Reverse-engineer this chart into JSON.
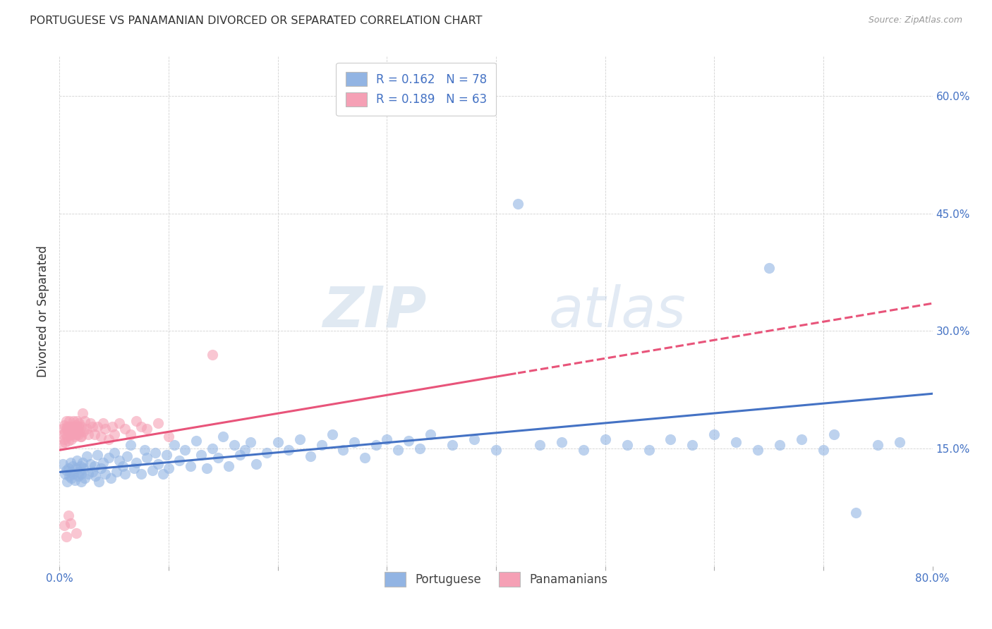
{
  "title": "PORTUGUESE VS PANAMANIAN DIVORCED OR SEPARATED CORRELATION CHART",
  "source": "Source: ZipAtlas.com",
  "ylabel": "Divorced or Separated",
  "x_min": 0.0,
  "x_max": 0.8,
  "y_min": 0.0,
  "y_max": 0.65,
  "x_ticks": [
    0.0,
    0.1,
    0.2,
    0.3,
    0.4,
    0.5,
    0.6,
    0.7,
    0.8
  ],
  "y_ticks": [
    0.0,
    0.15,
    0.3,
    0.45,
    0.6
  ],
  "watermark_zip": "ZIP",
  "watermark_atlas": "atlas",
  "portuguese_color": "#92b4e3",
  "panamanian_color": "#f5a0b5",
  "trend_portuguese_color": "#4472c4",
  "trend_panamanian_color": "#e8547a",
  "background_color": "#ffffff",
  "portuguese_scatter": [
    [
      0.003,
      0.13
    ],
    [
      0.005,
      0.118
    ],
    [
      0.006,
      0.122
    ],
    [
      0.007,
      0.108
    ],
    [
      0.008,
      0.125
    ],
    [
      0.009,
      0.115
    ],
    [
      0.01,
      0.132
    ],
    [
      0.01,
      0.12
    ],
    [
      0.011,
      0.112
    ],
    [
      0.012,
      0.128
    ],
    [
      0.013,
      0.118
    ],
    [
      0.014,
      0.11
    ],
    [
      0.015,
      0.125
    ],
    [
      0.016,
      0.135
    ],
    [
      0.017,
      0.115
    ],
    [
      0.018,
      0.12
    ],
    [
      0.019,
      0.128
    ],
    [
      0.02,
      0.108
    ],
    [
      0.02,
      0.118
    ],
    [
      0.021,
      0.132
    ],
    [
      0.022,
      0.125
    ],
    [
      0.023,
      0.112
    ],
    [
      0.025,
      0.14
    ],
    [
      0.026,
      0.118
    ],
    [
      0.028,
      0.13
    ],
    [
      0.03,
      0.12
    ],
    [
      0.032,
      0.128
    ],
    [
      0.033,
      0.115
    ],
    [
      0.035,
      0.142
    ],
    [
      0.036,
      0.108
    ],
    [
      0.038,
      0.125
    ],
    [
      0.04,
      0.132
    ],
    [
      0.042,
      0.118
    ],
    [
      0.045,
      0.138
    ],
    [
      0.047,
      0.112
    ],
    [
      0.05,
      0.145
    ],
    [
      0.052,
      0.12
    ],
    [
      0.055,
      0.135
    ],
    [
      0.058,
      0.128
    ],
    [
      0.06,
      0.118
    ],
    [
      0.062,
      0.14
    ],
    [
      0.065,
      0.155
    ],
    [
      0.068,
      0.125
    ],
    [
      0.07,
      0.132
    ],
    [
      0.075,
      0.118
    ],
    [
      0.078,
      0.148
    ],
    [
      0.08,
      0.138
    ],
    [
      0.085,
      0.122
    ],
    [
      0.088,
      0.145
    ],
    [
      0.09,
      0.13
    ],
    [
      0.095,
      0.118
    ],
    [
      0.098,
      0.142
    ],
    [
      0.1,
      0.125
    ],
    [
      0.105,
      0.155
    ],
    [
      0.11,
      0.135
    ],
    [
      0.115,
      0.148
    ],
    [
      0.12,
      0.128
    ],
    [
      0.125,
      0.16
    ],
    [
      0.13,
      0.142
    ],
    [
      0.135,
      0.125
    ],
    [
      0.14,
      0.15
    ],
    [
      0.145,
      0.138
    ],
    [
      0.15,
      0.165
    ],
    [
      0.155,
      0.128
    ],
    [
      0.16,
      0.155
    ],
    [
      0.165,
      0.142
    ],
    [
      0.17,
      0.148
    ],
    [
      0.175,
      0.158
    ],
    [
      0.18,
      0.13
    ],
    [
      0.19,
      0.145
    ],
    [
      0.2,
      0.158
    ],
    [
      0.21,
      0.148
    ],
    [
      0.22,
      0.162
    ],
    [
      0.23,
      0.14
    ],
    [
      0.24,
      0.155
    ],
    [
      0.25,
      0.168
    ],
    [
      0.26,
      0.148
    ],
    [
      0.27,
      0.158
    ],
    [
      0.28,
      0.138
    ],
    [
      0.29,
      0.155
    ],
    [
      0.3,
      0.162
    ],
    [
      0.31,
      0.148
    ],
    [
      0.32,
      0.16
    ],
    [
      0.33,
      0.15
    ],
    [
      0.34,
      0.168
    ],
    [
      0.36,
      0.155
    ],
    [
      0.38,
      0.162
    ],
    [
      0.4,
      0.148
    ],
    [
      0.42,
      0.462
    ],
    [
      0.44,
      0.155
    ],
    [
      0.46,
      0.158
    ],
    [
      0.48,
      0.148
    ],
    [
      0.5,
      0.162
    ],
    [
      0.52,
      0.155
    ],
    [
      0.54,
      0.148
    ],
    [
      0.56,
      0.162
    ],
    [
      0.58,
      0.155
    ],
    [
      0.6,
      0.168
    ],
    [
      0.62,
      0.158
    ],
    [
      0.64,
      0.148
    ],
    [
      0.65,
      0.38
    ],
    [
      0.66,
      0.155
    ],
    [
      0.68,
      0.162
    ],
    [
      0.7,
      0.148
    ],
    [
      0.71,
      0.168
    ],
    [
      0.73,
      0.068
    ],
    [
      0.75,
      0.155
    ],
    [
      0.77,
      0.158
    ]
  ],
  "panamanian_scatter": [
    [
      0.002,
      0.155
    ],
    [
      0.003,
      0.168
    ],
    [
      0.003,
      0.175
    ],
    [
      0.004,
      0.162
    ],
    [
      0.004,
      0.18
    ],
    [
      0.005,
      0.17
    ],
    [
      0.005,
      0.158
    ],
    [
      0.006,
      0.175
    ],
    [
      0.006,
      0.185
    ],
    [
      0.007,
      0.165
    ],
    [
      0.007,
      0.178
    ],
    [
      0.008,
      0.172
    ],
    [
      0.008,
      0.16
    ],
    [
      0.009,
      0.178
    ],
    [
      0.009,
      0.185
    ],
    [
      0.01,
      0.168
    ],
    [
      0.01,
      0.178
    ],
    [
      0.011,
      0.172
    ],
    [
      0.011,
      0.162
    ],
    [
      0.012,
      0.178
    ],
    [
      0.012,
      0.168
    ],
    [
      0.013,
      0.175
    ],
    [
      0.013,
      0.185
    ],
    [
      0.014,
      0.165
    ],
    [
      0.014,
      0.175
    ],
    [
      0.015,
      0.18
    ],
    [
      0.015,
      0.168
    ],
    [
      0.016,
      0.175
    ],
    [
      0.016,
      0.185
    ],
    [
      0.017,
      0.168
    ],
    [
      0.017,
      0.178
    ],
    [
      0.018,
      0.172
    ],
    [
      0.018,
      0.182
    ],
    [
      0.019,
      0.165
    ],
    [
      0.02,
      0.178
    ],
    [
      0.02,
      0.165
    ],
    [
      0.021,
      0.195
    ],
    [
      0.022,
      0.172
    ],
    [
      0.023,
      0.185
    ],
    [
      0.025,
      0.175
    ],
    [
      0.026,
      0.168
    ],
    [
      0.028,
      0.182
    ],
    [
      0.03,
      0.178
    ],
    [
      0.032,
      0.168
    ],
    [
      0.035,
      0.178
    ],
    [
      0.038,
      0.165
    ],
    [
      0.04,
      0.182
    ],
    [
      0.042,
      0.175
    ],
    [
      0.045,
      0.162
    ],
    [
      0.048,
      0.178
    ],
    [
      0.05,
      0.168
    ],
    [
      0.055,
      0.182
    ],
    [
      0.06,
      0.175
    ],
    [
      0.065,
      0.168
    ],
    [
      0.07,
      0.185
    ],
    [
      0.075,
      0.178
    ],
    [
      0.08,
      0.175
    ],
    [
      0.09,
      0.182
    ],
    [
      0.1,
      0.165
    ],
    [
      0.004,
      0.052
    ],
    [
      0.006,
      0.038
    ],
    [
      0.008,
      0.065
    ],
    [
      0.01,
      0.055
    ],
    [
      0.015,
      0.042
    ],
    [
      0.14,
      0.27
    ]
  ]
}
